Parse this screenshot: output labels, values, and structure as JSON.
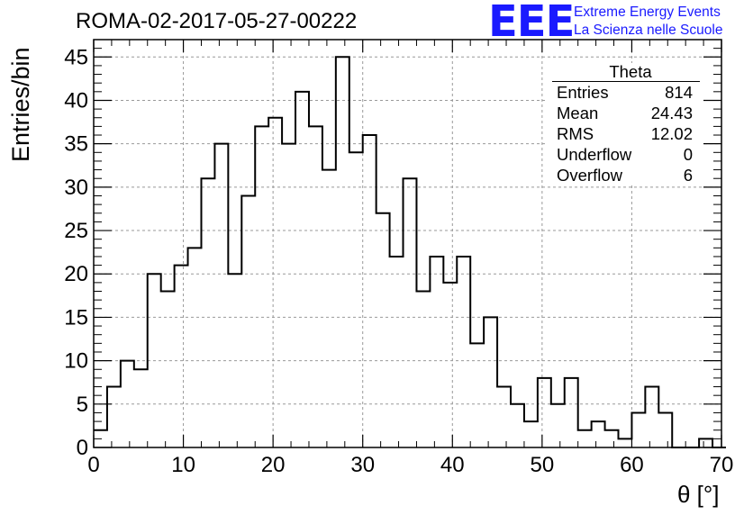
{
  "title": "ROMA-02-2017-05-27-00222",
  "logo": {
    "mark": "EEE",
    "line1": "Extreme Energy Events",
    "line2": "La Scienza nelle Scuole",
    "color": "#1a1aff"
  },
  "stats_box": {
    "title": "Theta",
    "rows": [
      {
        "label": "Entries",
        "value": "814"
      },
      {
        "label": "Mean",
        "value": "24.43"
      },
      {
        "label": "RMS",
        "value": "12.02"
      },
      {
        "label": "Underflow",
        "value": "0"
      },
      {
        "label": "Overflow",
        "value": "6"
      }
    ]
  },
  "chart_data": {
    "type": "histogram",
    "title": "ROMA-02-2017-05-27-00222",
    "xlabel": "θ [°]",
    "ylabel": "Entries/bin",
    "xlim": [
      0,
      70
    ],
    "ylim": [
      0,
      47
    ],
    "x_ticks": [
      0,
      10,
      20,
      30,
      40,
      50,
      60,
      70
    ],
    "y_ticks": [
      0,
      5,
      10,
      15,
      20,
      25,
      30,
      35,
      40,
      45
    ],
    "grid": true,
    "bin_width": 1.5,
    "bin_edges_start": 0,
    "values": [
      2,
      7,
      10,
      9,
      20,
      18,
      21,
      23,
      31,
      35,
      20,
      29,
      37,
      38,
      35,
      41,
      37,
      32,
      45,
      34,
      36,
      27,
      22,
      31,
      18,
      22,
      19,
      22,
      12,
      15,
      7,
      5,
      3,
      8,
      5,
      8,
      2,
      3,
      2,
      1,
      4,
      7,
      4,
      0,
      0,
      1,
      0
    ],
    "line_color": "#000000"
  }
}
